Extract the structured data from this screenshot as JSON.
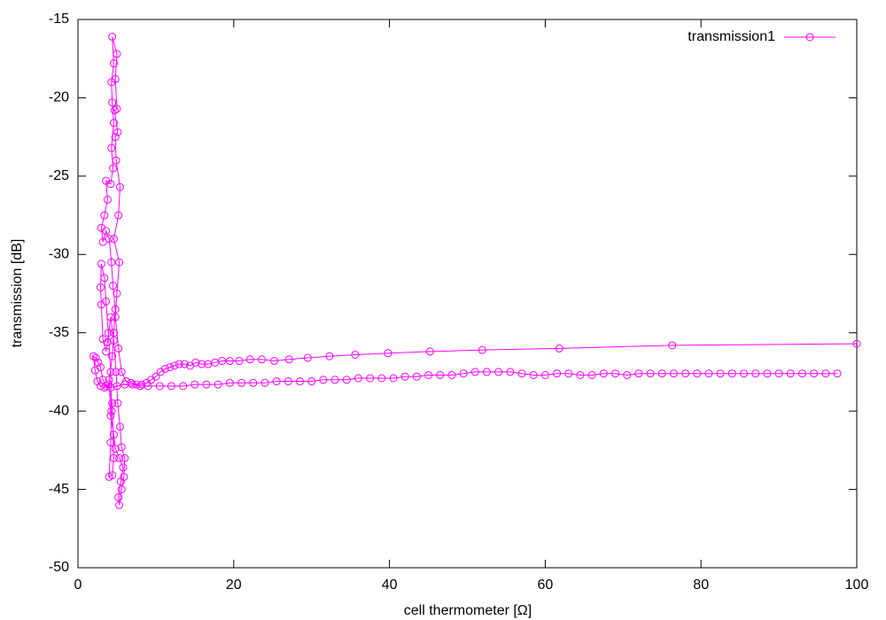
{
  "chart_data": {
    "type": "line",
    "x_label": "cell thermometer [Ω]",
    "y_label": "transmission [dB]",
    "xlim": [
      0,
      100
    ],
    "xticks": [
      0,
      20,
      40,
      60,
      80,
      100
    ],
    "ylim": [
      -50,
      -15
    ],
    "yticks": [
      -50,
      -45,
      -40,
      -35,
      -30,
      -25,
      -20,
      -15
    ],
    "legend": "top-right",
    "markers": true,
    "x": [
      100,
      76.3,
      61.8,
      51.9,
      45.2,
      39.8,
      35.6,
      32.3,
      29.5,
      27.1,
      25.2,
      23.6,
      22.1,
      20.7,
      19.5,
      18.5,
      17.6,
      16.7,
      15.9,
      15.1,
      14.4,
      13.7,
      13.0,
      12.4,
      11.8,
      11.2,
      10.6,
      10.0,
      9.4,
      8.8,
      8.2,
      7.5,
      6.8,
      6.2,
      5.6,
      5.2,
      4.8,
      5.0,
      5.3,
      4.6,
      5.2,
      5.4,
      4.9,
      4.8,
      5.1,
      4.7,
      5.0,
      4.8,
      5.0,
      4.4,
      4.6,
      4.3,
      4.4,
      4.6,
      4.3,
      4.5,
      4.2,
      3.6,
      3.8,
      3.4,
      3.0,
      3.2,
      3.6,
      4.0,
      4.3,
      4.5,
      4.8,
      4.6,
      4.4,
      4.0,
      4.2,
      4.6,
      4.8,
      5.3,
      5.8,
      5.5,
      5.2,
      5.3,
      5.6,
      5.9,
      6.0,
      5.6,
      5.4,
      5.1,
      4.9,
      4.6,
      4.2,
      3.8,
      3.6,
      3.2,
      3.0,
      2.9,
      3.0,
      3.4,
      3.6,
      3.9,
      4.2,
      4.3,
      4.2,
      4.0,
      4.4,
      4.6,
      4.4,
      3.9,
      3.4,
      2.9,
      2.5,
      2.2,
      2.0,
      2.3,
      2.6,
      2.9,
      3.2,
      3.6,
      4.2,
      5.0,
      6.0,
      7.0,
      8.0,
      9.0,
      10.5,
      12,
      13.5,
      15,
      16.5,
      18,
      19.5,
      21,
      22.5,
      24,
      25.5,
      27,
      28.5,
      30,
      31.5,
      33,
      34.5,
      36,
      37.5,
      39,
      40.5,
      42,
      43.5,
      45,
      46.5,
      48,
      49.5,
      51,
      52.5,
      54,
      55.5,
      57,
      58.5,
      60,
      61.5,
      63,
      64.5,
      66,
      67.5,
      69,
      70.5,
      72,
      73.5,
      75,
      76.5,
      78,
      79.5,
      81,
      82.5,
      84,
      85.5,
      87,
      88.5,
      90,
      91.5,
      93,
      94.5,
      96,
      97.5
    ],
    "series": [
      {
        "name": "transmission1",
        "color": "#ff00ff",
        "values": [
          -35.7,
          -35.8,
          -36.0,
          -36.1,
          -36.2,
          -36.3,
          -36.4,
          -36.5,
          -36.6,
          -36.7,
          -36.8,
          -36.7,
          -36.7,
          -36.8,
          -36.8,
          -36.8,
          -36.9,
          -37.0,
          -37.0,
          -36.9,
          -37.1,
          -37.0,
          -37.0,
          -37.1,
          -37.2,
          -37.3,
          -37.5,
          -37.8,
          -38.0,
          -38.2,
          -38.3,
          -38.3,
          -38.2,
          -38.1,
          -37.5,
          -36.0,
          -34.0,
          -32.5,
          -30.5,
          -29.0,
          -27.5,
          -25.7,
          -24.0,
          -22.5,
          -22.2,
          -20.8,
          -20.7,
          -18.8,
          -17.2,
          -16.1,
          -17.8,
          -19.0,
          -20.3,
          -21.6,
          -23.2,
          -24.5,
          -25.5,
          -25.3,
          -26.5,
          -27.5,
          -28.3,
          -29.2,
          -28.5,
          -29.0,
          -30.5,
          -32.0,
          -33.5,
          -35.0,
          -36.5,
          -38.0,
          -40.3,
          -41.5,
          -42.4,
          -43.0,
          -43.6,
          -44.5,
          -45.5,
          -46.0,
          -45.0,
          -44.2,
          -43.0,
          -42.3,
          -41.0,
          -39.5,
          -37.5,
          -35.5,
          -34.0,
          -35.6,
          -36.2,
          -35.4,
          -33.2,
          -32.1,
          -30.6,
          -31.5,
          -33.0,
          -35.0,
          -37.5,
          -40.0,
          -42.0,
          -44.2,
          -44.1,
          -43.0,
          -39.5,
          -38.3,
          -38.5,
          -38.4,
          -38.1,
          -37.4,
          -36.5,
          -36.6,
          -36.9,
          -37.2,
          -38.0,
          -38.4,
          -38.5,
          -38.4,
          -38.3,
          -38.3,
          -38.4,
          -38.4,
          -38.4,
          -38.4,
          -38.4,
          -38.3,
          -38.3,
          -38.3,
          -38.2,
          -38.2,
          -38.2,
          -38.2,
          -38.1,
          -38.1,
          -38.1,
          -38.1,
          -38.0,
          -38.0,
          -38.0,
          -37.9,
          -37.9,
          -37.9,
          -37.9,
          -37.8,
          -37.8,
          -37.7,
          -37.7,
          -37.7,
          -37.6,
          -37.5,
          -37.5,
          -37.5,
          -37.5,
          -37.6,
          -37.7,
          -37.7,
          -37.6,
          -37.6,
          -37.7,
          -37.7,
          -37.6,
          -37.6,
          -37.7,
          -37.6,
          -37.6,
          -37.6,
          -37.6,
          -37.6,
          -37.6,
          -37.6,
          -37.6,
          -37.6,
          -37.6,
          -37.6,
          -37.6,
          -37.6,
          -37.6,
          -37.6,
          -37.6,
          -37.6,
          -37.6
        ]
      }
    ]
  }
}
